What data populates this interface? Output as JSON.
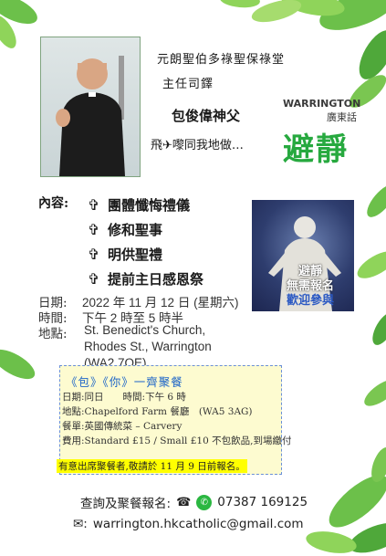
{
  "header": {
    "church_line": "元朗聖伯多祿聖保祿堂",
    "role_line": "主任司鐸",
    "priest_name": "包俊偉神父",
    "tagline": "飛✈嚟同我地做…",
    "location_title": "WARRINGTON",
    "language": "廣東話",
    "event_title": "避靜"
  },
  "content": {
    "label": "內容:",
    "items": [
      "團體懺悔禮儀",
      "修和聖事",
      "明供聖禮",
      "提前主日感恩祭"
    ]
  },
  "image_caption": {
    "line1": "避靜",
    "line2": "無需報名",
    "line3": "歡迎參與"
  },
  "details": {
    "date_label": "日期:",
    "date_value": "2022 年 11 月 12 日 (星期六)",
    "time_label": "時間:",
    "time_value": "下午 2 時至 5 時半",
    "place_label": "地點:",
    "place_line1": "St. Benedict's Church,",
    "place_line2": "Rhodes St., Warrington",
    "place_line3": "(WA2 7QE)"
  },
  "meal": {
    "title": "《包》《你》一齊聚餐",
    "date": "日期:同日　　時間:下午 6 時",
    "place": "地點:Chapelford Farm 餐廳　(WA5 3AG)",
    "food": "餐單:英國傳統菜 – Carvery",
    "price": "費用:Standard £15 / Small £10 不包飲品,到場繳付",
    "note": "有意出席聚餐者,敬請於 11 月 9 日前報名。"
  },
  "contact": {
    "label": "查詢及聚餐報名:",
    "phone": "07387 169125",
    "email": "warrington.hkcatholic@gmail.com"
  },
  "colors": {
    "accent_green": "#27a93f",
    "accent_blue": "#1f66c8",
    "highlight_yellow": "#ffff00"
  }
}
